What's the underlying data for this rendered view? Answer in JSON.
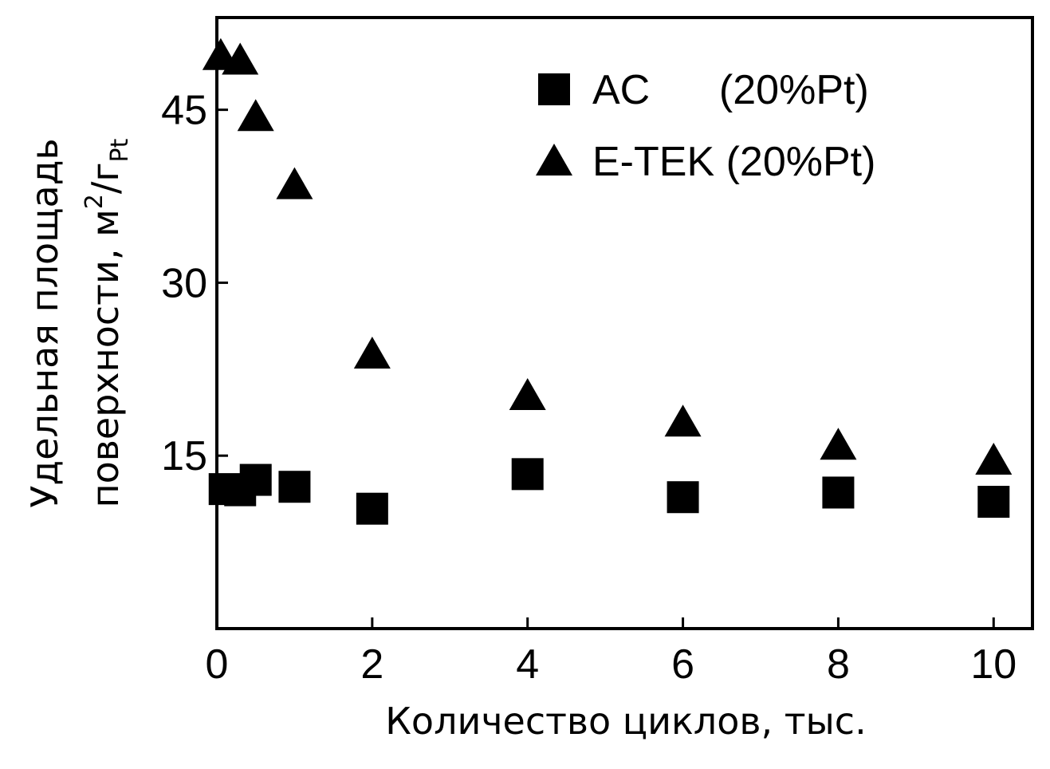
{
  "chart_data": {
    "type": "scatter",
    "title": "",
    "xlabel": "Количество циклов, тыс.",
    "ylabel": {
      "line1": "Удельная площадь",
      "line2_prefix": "поверхности, м",
      "line2_sup": "2",
      "line2_mid": "/г",
      "line2_sub": "Pt"
    },
    "xlim": [
      0,
      10.5
    ],
    "ylim": [
      0,
      53
    ],
    "x_ticks": [
      {
        "value": 0,
        "label": "0"
      },
      {
        "value": 2,
        "label": "2"
      },
      {
        "value": 4,
        "label": "4"
      },
      {
        "value": 6,
        "label": "6"
      },
      {
        "value": 8,
        "label": "8"
      },
      {
        "value": 10,
        "label": "10"
      }
    ],
    "y_ticks": [
      {
        "value": 15,
        "label": "15"
      },
      {
        "value": 30,
        "label": "30"
      },
      {
        "value": 45,
        "label": "45"
      }
    ],
    "grid": false,
    "legend_position": "top-right",
    "series": [
      {
        "name": "AC      (20%Pt)",
        "marker": "square",
        "color": "#000000",
        "points": [
          {
            "x": 0.1,
            "y": 12.1
          },
          {
            "x": 0.3,
            "y": 12.0
          },
          {
            "x": 0.5,
            "y": 12.9
          },
          {
            "x": 1.0,
            "y": 12.3
          },
          {
            "x": 2.0,
            "y": 10.4
          },
          {
            "x": 4.0,
            "y": 13.4
          },
          {
            "x": 6.0,
            "y": 11.4
          },
          {
            "x": 8.0,
            "y": 11.8
          },
          {
            "x": 10.0,
            "y": 11.0
          }
        ]
      },
      {
        "name": "E-TEK (20%Pt)",
        "marker": "triangle",
        "color": "#000000",
        "points": [
          {
            "x": 0.05,
            "y": 49.7
          },
          {
            "x": 0.3,
            "y": 49.3
          },
          {
            "x": 0.5,
            "y": 44.4
          },
          {
            "x": 1.0,
            "y": 38.5
          },
          {
            "x": 2.0,
            "y": 23.8
          },
          {
            "x": 4.0,
            "y": 20.2
          },
          {
            "x": 6.0,
            "y": 17.9
          },
          {
            "x": 8.0,
            "y": 15.9
          },
          {
            "x": 10.0,
            "y": 14.6
          }
        ]
      }
    ]
  }
}
